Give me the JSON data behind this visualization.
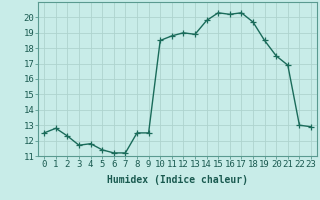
{
  "x": [
    0,
    1,
    2,
    3,
    4,
    5,
    6,
    7,
    8,
    9,
    10,
    11,
    12,
    13,
    14,
    15,
    16,
    17,
    18,
    19,
    20,
    21,
    22,
    23
  ],
  "y": [
    12.5,
    12.8,
    12.3,
    11.7,
    11.8,
    11.4,
    11.2,
    11.2,
    12.5,
    12.5,
    18.5,
    18.8,
    19.0,
    18.9,
    19.8,
    20.3,
    20.2,
    20.3,
    19.7,
    18.5,
    17.5,
    16.9,
    13.0,
    12.9
  ],
  "line_color": "#1a6b5a",
  "marker": "+",
  "marker_size": 4,
  "linewidth": 1.0,
  "xlabel": "Humidex (Indice chaleur)",
  "xlabel_fontsize": 7,
  "xlim": [
    -0.5,
    23.5
  ],
  "ylim": [
    11,
    21
  ],
  "yticks": [
    11,
    12,
    13,
    14,
    15,
    16,
    17,
    18,
    19,
    20
  ],
  "xticks": [
    0,
    1,
    2,
    3,
    4,
    5,
    6,
    7,
    8,
    9,
    10,
    11,
    12,
    13,
    14,
    15,
    16,
    17,
    18,
    19,
    20,
    21,
    22,
    23
  ],
  "xtick_labels": [
    "0",
    "1",
    "2",
    "3",
    "4",
    "5",
    "6",
    "7",
    "8",
    "9",
    "10",
    "11",
    "12",
    "13",
    "14",
    "15",
    "16",
    "17",
    "18",
    "19",
    "20",
    "21",
    "22",
    "23"
  ],
  "background_color": "#c8ece8",
  "grid_color": "#aed4ce",
  "tick_fontsize": 6.5,
  "spine_color": "#5a9a90"
}
